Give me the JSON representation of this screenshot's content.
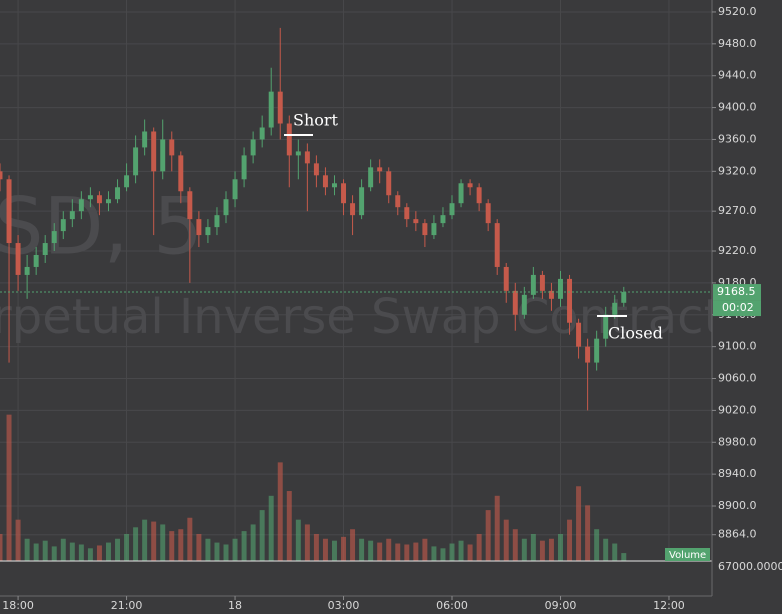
{
  "chart_data": {
    "type": "candlestick",
    "watermark": [
      "SD, 5",
      "rpetual Inverse Swap Contract"
    ],
    "x": [
      -0.5,
      -0.25,
      0,
      0.25,
      0.5,
      0.75,
      1,
      1.25,
      1.5,
      1.75,
      2,
      2.25,
      2.5,
      2.75,
      3,
      3.25,
      3.5,
      3.75,
      4,
      4.25,
      4.5,
      4.75,
      5,
      5.25,
      5.5,
      5.75,
      6,
      6.25,
      6.5,
      6.75,
      7,
      7.25,
      7.5,
      7.75,
      8,
      8.25,
      8.5,
      8.75,
      9,
      9.25,
      9.5,
      9.75,
      10,
      10.25,
      10.5,
      10.75,
      11,
      11.25,
      11.5,
      11.75,
      12,
      12.25,
      12.5,
      12.75,
      13,
      13.25,
      13.5,
      13.75,
      14,
      14.25,
      14.5,
      14.75,
      15,
      15.25,
      15.5,
      15.75,
      16,
      16.25,
      16.5,
      16.75
    ],
    "open": [
      9320,
      9310,
      9230,
      9190,
      9200,
      9215,
      9230,
      9245,
      9260,
      9270,
      9285,
      9290,
      9280,
      9285,
      9300,
      9315,
      9350,
      9370,
      9320,
      9360,
      9340,
      9295,
      9260,
      9240,
      9250,
      9265,
      9285,
      9310,
      9340,
      9360,
      9375,
      9420,
      9380,
      9340,
      9345,
      9330,
      9315,
      9300,
      9305,
      9280,
      9265,
      9300,
      9325,
      9320,
      9290,
      9275,
      9260,
      9255,
      9240,
      9255,
      9265,
      9280,
      9305,
      9300,
      9280,
      9255,
      9200,
      9170,
      9140,
      9165,
      9190,
      9170,
      9160,
      9185,
      9130,
      9100,
      9080,
      9110,
      9140,
      9155
    ],
    "high": [
      9330,
      9315,
      9240,
      9215,
      9225,
      9240,
      9255,
      9270,
      9285,
      9295,
      9300,
      9295,
      9295,
      9310,
      9330,
      9365,
      9385,
      9375,
      9385,
      9370,
      9345,
      9300,
      9270,
      9260,
      9275,
      9295,
      9320,
      9350,
      9370,
      9390,
      9450,
      9500,
      9390,
      9360,
      9355,
      9340,
      9325,
      9315,
      9310,
      9290,
      9310,
      9335,
      9335,
      9325,
      9295,
      9280,
      9270,
      9260,
      9265,
      9275,
      9290,
      9310,
      9310,
      9305,
      9285,
      9260,
      9205,
      9180,
      9175,
      9200,
      9195,
      9180,
      9195,
      9190,
      9135,
      9110,
      9120,
      9150,
      9165,
      9175
    ],
    "low": [
      9295,
      9080,
      9170,
      9160,
      9190,
      9205,
      9220,
      9235,
      9250,
      9260,
      9275,
      9265,
      9270,
      9280,
      9295,
      9305,
      9340,
      9240,
      9310,
      9320,
      9280,
      9180,
      9225,
      9230,
      9240,
      9255,
      9275,
      9300,
      9330,
      9350,
      9365,
      9360,
      9300,
      9310,
      9270,
      9300,
      9290,
      9290,
      9265,
      9240,
      9260,
      9295,
      9305,
      9280,
      9265,
      9250,
      9245,
      9225,
      9235,
      9250,
      9260,
      9275,
      9290,
      9270,
      9245,
      9190,
      9155,
      9120,
      9135,
      9160,
      9160,
      9145,
      9150,
      9115,
      9085,
      9020,
      9070,
      9100,
      9135,
      9150
    ],
    "close": [
      9310,
      9230,
      9190,
      9200,
      9215,
      9230,
      9245,
      9260,
      9270,
      9285,
      9290,
      9280,
      9285,
      9300,
      9315,
      9350,
      9370,
      9320,
      9360,
      9340,
      9295,
      9260,
      9240,
      9250,
      9265,
      9285,
      9310,
      9340,
      9360,
      9375,
      9420,
      9380,
      9340,
      9345,
      9330,
      9315,
      9300,
      9305,
      9280,
      9265,
      9300,
      9325,
      9320,
      9290,
      9275,
      9260,
      9255,
      9240,
      9255,
      9265,
      9280,
      9305,
      9300,
      9280,
      9255,
      9200,
      9170,
      9140,
      9165,
      9190,
      9170,
      9160,
      9185,
      9130,
      9100,
      9080,
      9110,
      9140,
      9155,
      9168.5
    ],
    "volume": [
      350000,
      1600000,
      500000,
      300000,
      250000,
      280000,
      220000,
      300000,
      260000,
      240000,
      200000,
      230000,
      260000,
      300000,
      350000,
      420000,
      500000,
      480000,
      450000,
      380000,
      400000,
      520000,
      350000,
      300000,
      260000,
      240000,
      300000,
      380000,
      450000,
      600000,
      750000,
      1100000,
      800000,
      500000,
      450000,
      350000,
      300000,
      280000,
      320000,
      400000,
      300000,
      280000,
      260000,
      300000,
      250000,
      240000,
      260000,
      300000,
      220000,
      200000,
      250000,
      280000,
      240000,
      350000,
      600000,
      750000,
      500000,
      400000,
      300000,
      350000,
      280000,
      300000,
      350000,
      500000,
      850000,
      650000,
      400000,
      300000,
      250000,
      150000
    ],
    "up_color": "#53a36f",
    "down_color": "#c65a4b",
    "xlim": [
      -0.5,
      19.19
    ],
    "xticks": [
      {
        "value": 0,
        "label": "18:00"
      },
      {
        "value": 3,
        "label": "21:00"
      },
      {
        "value": 6,
        "label": "18"
      },
      {
        "value": 9,
        "label": "03:00"
      },
      {
        "value": 12,
        "label": "06:00"
      },
      {
        "value": 15,
        "label": "09:00"
      },
      {
        "value": 18,
        "label": "12:00"
      }
    ],
    "ylim": [
      8831,
      9535
    ],
    "yticks": [
      {
        "value": 9520,
        "label": "9520.0"
      },
      {
        "value": 9480,
        "label": "9480.0"
      },
      {
        "value": 9440,
        "label": "9440.0"
      },
      {
        "value": 9400,
        "label": "9400.0"
      },
      {
        "value": 9360,
        "label": "9360.0"
      },
      {
        "value": 9320,
        "label": "9320.0"
      },
      {
        "value": 9270,
        "label": "9270.0"
      },
      {
        "value": 9220,
        "label": "9220.0"
      },
      {
        "value": 9180,
        "label": "9180.0"
      },
      {
        "value": 9140,
        "label": "9140.0"
      },
      {
        "value": 9100,
        "label": "9100.0"
      },
      {
        "value": 9060,
        "label": "9060.0"
      },
      {
        "value": 9020,
        "label": "9020.0"
      },
      {
        "value": 8980,
        "label": "8980.0"
      },
      {
        "value": 8940,
        "label": "8940.0"
      },
      {
        "value": 8900,
        "label": "8900.0"
      },
      {
        "value": 8864,
        "label": "8864.0"
      }
    ],
    "y2lim": [
      67000,
      3000000
    ],
    "y2ticks": [
      {
        "value": 67000,
        "label": "67000.0000"
      }
    ],
    "volume_label": "Volume",
    "last_price": 9168.5,
    "countdown": "00:02",
    "annotations": [
      {
        "text": "Short"
      },
      {
        "text": "Closed"
      }
    ],
    "grid": true
  }
}
